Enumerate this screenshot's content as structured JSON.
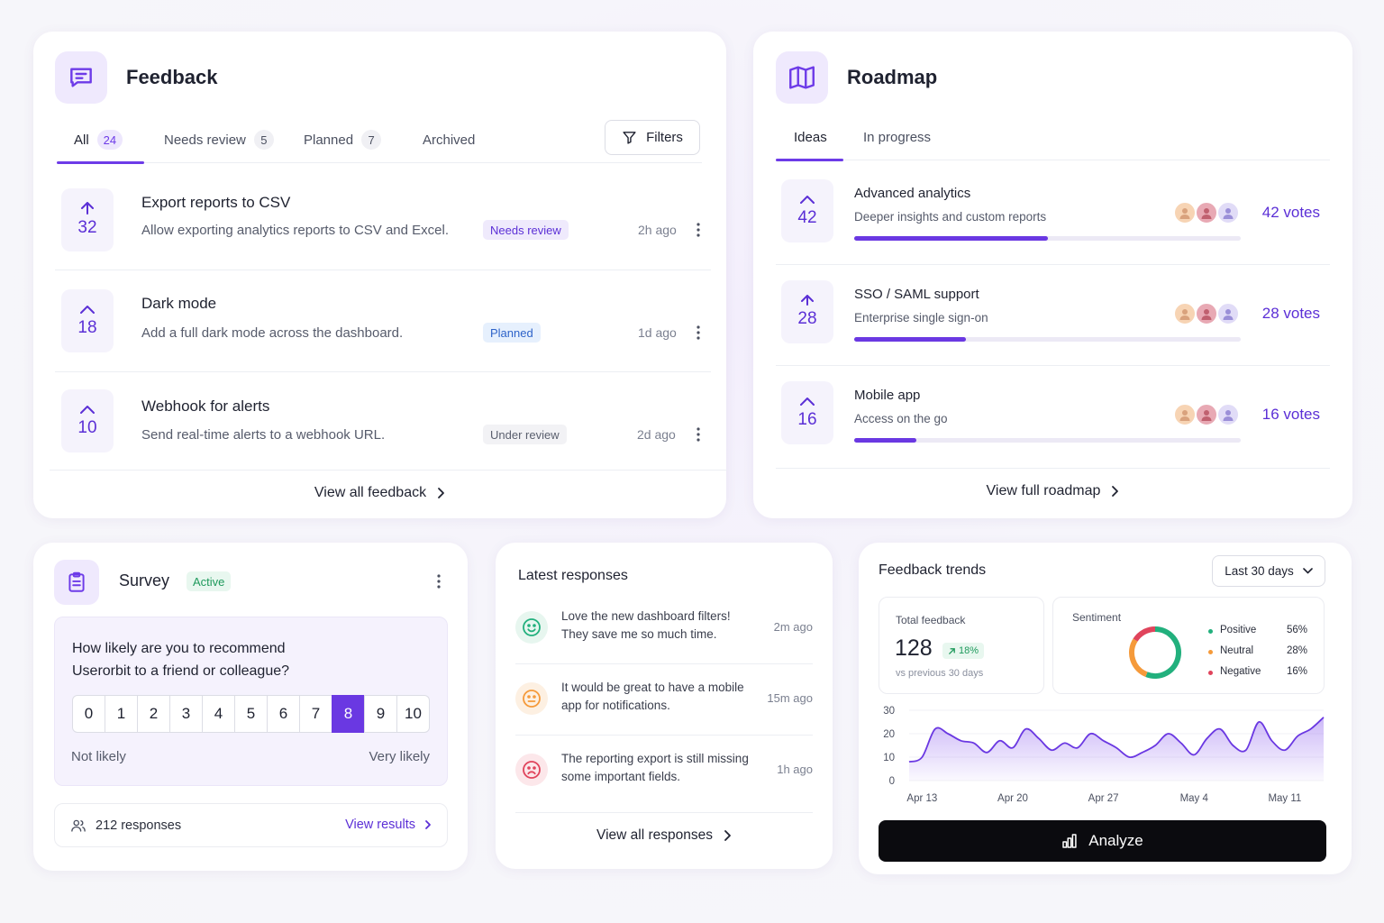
{
  "feedback": {
    "title": "Feedback",
    "icon": "message-square-icon",
    "tabs": [
      {
        "label": "All",
        "count": "24"
      },
      {
        "label": "Needs review",
        "count": "5"
      },
      {
        "label": "Planned",
        "count": "7"
      },
      {
        "label": "Archived",
        "count": ""
      }
    ],
    "filters_label": "Filters",
    "items": [
      {
        "votes": "32",
        "title": "Export reports to CSV",
        "desc": "Allow exporting analytics reports to CSV and Excel.",
        "status": "Needs review",
        "time": "2h ago"
      },
      {
        "votes": "18",
        "title": "Dark mode",
        "desc": "Add a full dark mode across the dashboard.",
        "status": "Planned",
        "time": "1d ago"
      },
      {
        "votes": "10",
        "title": "Webhook for alerts",
        "desc": "Send real-time alerts to a webhook URL.",
        "status": "Under review",
        "time": "2d ago"
      }
    ],
    "view_all": "View all feedback"
  },
  "roadmap": {
    "title": "Roadmap",
    "icon": "map-icon",
    "tabs": [
      {
        "label": "Ideas"
      },
      {
        "label": "In progress"
      }
    ],
    "items": [
      {
        "votes": "42",
        "title": "Advanced analytics",
        "desc": "Deeper insights and custom reports",
        "votes_label": "42 votes",
        "progress": 0.5
      },
      {
        "votes": "28",
        "title": "SSO / SAML support",
        "desc": "Enterprise single sign-on",
        "votes_label": "28 votes",
        "progress": 0.29
      },
      {
        "votes": "16",
        "title": "Mobile app",
        "desc": "Access on the go",
        "votes_label": "16 votes",
        "progress": 0.16
      }
    ],
    "view_all": "View full roadmap"
  },
  "survey": {
    "title": "Survey",
    "status": "Active",
    "question_line1": "How likely are you to recommend",
    "question_line2": "Userorbit to a friend or colleague?",
    "scale": [
      "0",
      "1",
      "2",
      "3",
      "4",
      "5",
      "6",
      "7",
      "8",
      "9",
      "10"
    ],
    "selected": "8",
    "low_label": "Not likely",
    "high_label": "Very likely",
    "responses": "212 responses",
    "view_results": "View results"
  },
  "latest": {
    "title": "Latest responses",
    "items": [
      {
        "sentiment": "positive",
        "line1": "Love the new dashboard filters!",
        "line2": "They save me so much time.",
        "time": "2m ago"
      },
      {
        "sentiment": "neutral",
        "line1": "It would be great to have a mobile",
        "line2": "app for notifications.",
        "time": "15m ago"
      },
      {
        "sentiment": "negative",
        "line1": "The reporting export is still missing",
        "line2": "some important fields.",
        "time": "1h ago"
      }
    ],
    "view_all": "View all responses"
  },
  "trends": {
    "title": "Feedback trends",
    "range": "Last 30 days",
    "total_label": "Total feedback",
    "total_value": "128",
    "delta": "18%",
    "compare": "vs previous 30 days",
    "sentiment_label": "Sentiment",
    "analyze": "Analyze"
  },
  "colors": {
    "accent": "#6a38e2",
    "positive": "#22b07d",
    "neutral": "#f59a3a",
    "negative": "#e0445c"
  },
  "chart_data": [
    {
      "type": "pie",
      "title": "Sentiment",
      "slices": [
        {
          "name": "Positive",
          "value": 56,
          "label": "56%"
        },
        {
          "name": "Neutral",
          "value": 28,
          "label": "28%"
        },
        {
          "name": "Negative",
          "value": 16,
          "label": "16%"
        }
      ]
    },
    {
      "type": "area",
      "title": "",
      "xlabel": "",
      "ylabel": "",
      "x_ticks": [
        "Apr 13",
        "Apr 20",
        "Apr 27",
        "May 4",
        "May 11"
      ],
      "y_ticks": [
        "0",
        "10",
        "20",
        "30"
      ],
      "ylim": [
        0,
        30
      ],
      "x": [
        "Apr 12",
        "Apr 13",
        "Apr 14",
        "Apr 15",
        "Apr 16",
        "Apr 17",
        "Apr 18",
        "Apr 19",
        "Apr 20",
        "Apr 21",
        "Apr 22",
        "Apr 23",
        "Apr 24",
        "Apr 25",
        "Apr 26",
        "Apr 27",
        "Apr 28",
        "Apr 29",
        "Apr 30",
        "May 1",
        "May 2",
        "May 3",
        "May 4",
        "May 5",
        "May 6",
        "May 7",
        "May 8",
        "May 9",
        "May 10",
        "May 11",
        "May 12",
        "May 13",
        "May 14"
      ],
      "values": [
        8,
        10,
        22,
        20,
        17,
        16,
        12,
        17,
        14,
        22,
        18,
        13,
        16,
        14,
        20,
        17,
        14,
        10,
        12,
        15,
        20,
        16,
        11,
        18,
        22,
        15,
        13,
        25,
        17,
        13,
        19,
        22,
        27
      ]
    }
  ]
}
